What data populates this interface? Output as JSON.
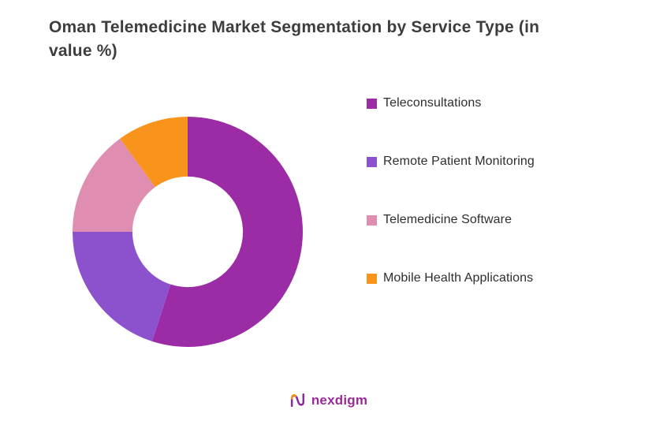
{
  "title": "Oman Telemedicine Market Segmentation by Service Type (in value %)",
  "chart_data": {
    "type": "pie",
    "subtype": "donut",
    "title": "Oman Telemedicine Market Segmentation by Service Type (in value %)",
    "categories": [
      "Teleconsultations",
      "Remote Patient Monitoring",
      "Telemedicine Software",
      "Mobile Health Applications"
    ],
    "values": [
      55,
      20,
      15,
      10
    ],
    "colors": [
      "#9C2BA6",
      "#8C52CE",
      "#DF8DB1",
      "#F8941C"
    ],
    "start_angle_deg": 0,
    "direction": "clockwise",
    "inner_radius_ratio": 0.48,
    "legend_position": "right",
    "data_labels": "none"
  },
  "footer": {
    "brand": "nexdigm",
    "brand_color": "#9a2b96",
    "icon_accent_color": "#F8941C"
  }
}
